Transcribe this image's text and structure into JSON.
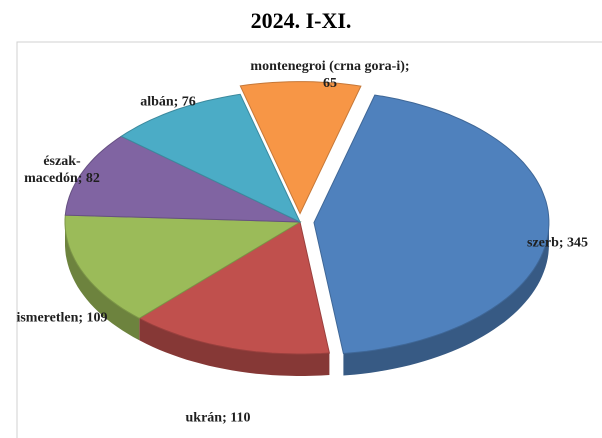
{
  "chart_data": {
    "type": "pie3d",
    "title": "2024. I-XI.",
    "categories": [
      "szerb",
      "ukrán",
      "ismeretlen",
      "észak-macedón",
      "albán",
      "montenegroi (crna gora-i)"
    ],
    "values": [
      345,
      110,
      109,
      82,
      76,
      65
    ],
    "value_labels": [
      "szerb; 345",
      "ukrán; 110",
      "ismeretlen; 109",
      "észak-macedón; 82",
      "albán; 76",
      "montenegroi (crna gora-i); 65"
    ],
    "colors": [
      "#4f81bd",
      "#c0504d",
      "#9bbb59",
      "#8064a2",
      "#4bacc6",
      "#f79646"
    ]
  }
}
